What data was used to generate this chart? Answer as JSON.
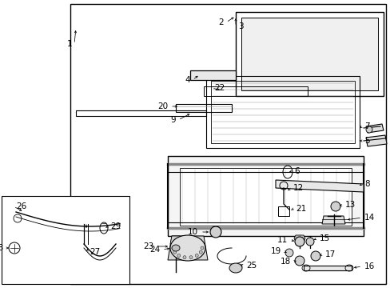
{
  "bg_color": "#ffffff",
  "lc": "#000000",
  "tc": "#000000",
  "fs": 7.5,
  "lw": 0.7
}
